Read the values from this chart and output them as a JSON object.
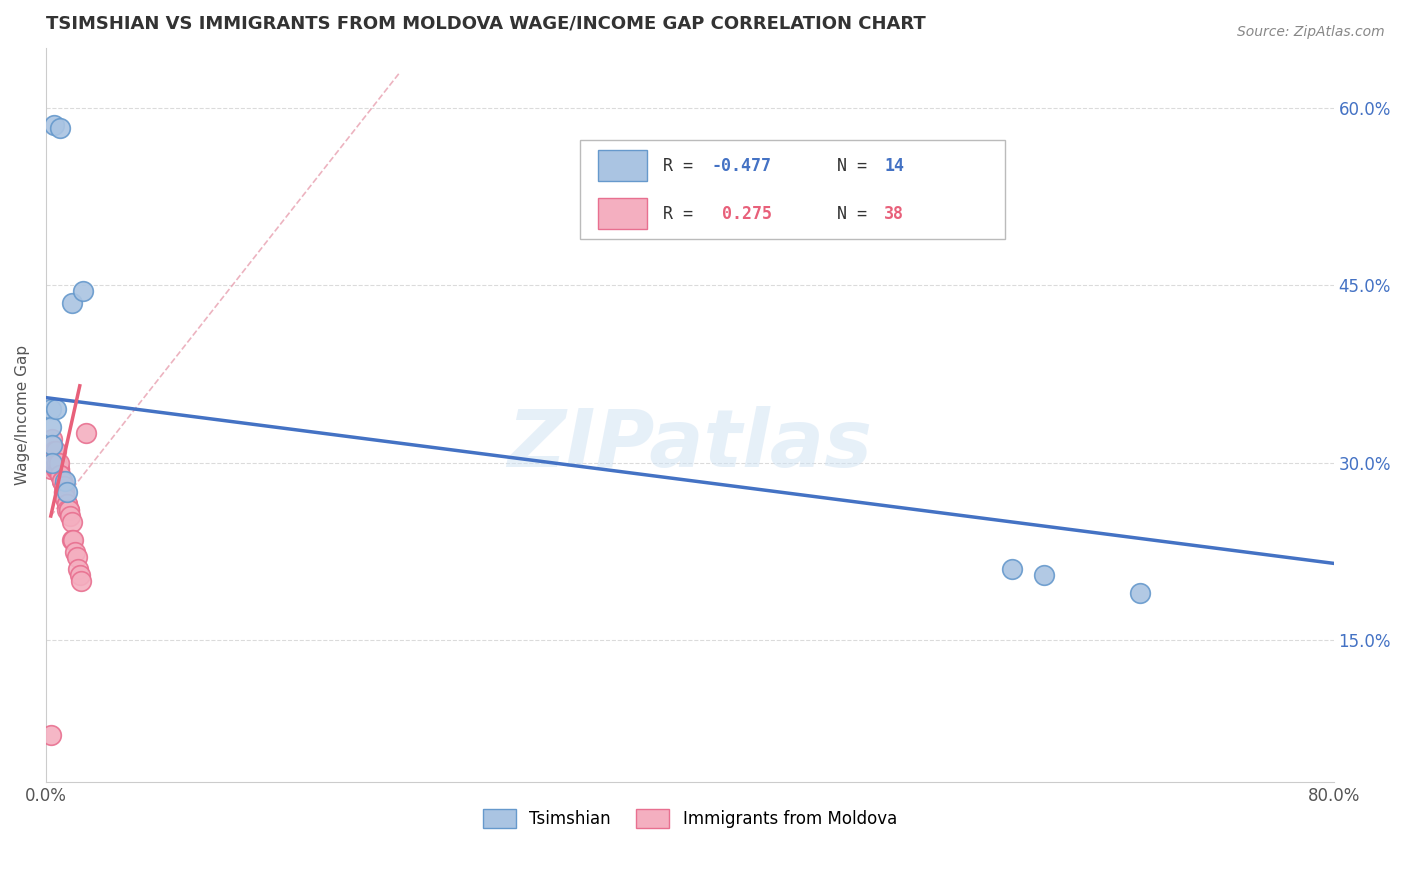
{
  "title": "TSIMSHIAN VS IMMIGRANTS FROM MOLDOVA WAGE/INCOME GAP CORRELATION CHART",
  "source": "Source: ZipAtlas.com",
  "ylabel": "Wage/Income Gap",
  "xlim": [
    0.0,
    0.8
  ],
  "ylim": [
    0.03,
    0.65
  ],
  "y_ticks": [
    0.15,
    0.3,
    0.45,
    0.6
  ],
  "y_tick_labels": [
    "15.0%",
    "30.0%",
    "45.0%",
    "60.0%"
  ],
  "watermark": "ZIPatlas",
  "tsimshian_color": "#aac4e2",
  "moldova_color": "#f4afc0",
  "tsimshian_edge": "#6699cc",
  "moldova_edge": "#e87090",
  "blue_line_color": "#4472c4",
  "pink_line_color": "#e8607a",
  "ref_line_color": "#e8a0b0",
  "background_color": "#ffffff",
  "grid_color": "#cccccc",
  "tsimshian_x": [
    0.005,
    0.009,
    0.016,
    0.023,
    0.003,
    0.003,
    0.004,
    0.004,
    0.006,
    0.012,
    0.013,
    0.62,
    0.68,
    0.6
  ],
  "tsimshian_y": [
    0.585,
    0.583,
    0.435,
    0.445,
    0.345,
    0.33,
    0.315,
    0.3,
    0.345,
    0.285,
    0.275,
    0.205,
    0.19,
    0.21
  ],
  "moldova_x": [
    0.003,
    0.004,
    0.004,
    0.005,
    0.005,
    0.005,
    0.006,
    0.006,
    0.007,
    0.007,
    0.008,
    0.008,
    0.008,
    0.009,
    0.009,
    0.01,
    0.01,
    0.011,
    0.011,
    0.011,
    0.012,
    0.012,
    0.013,
    0.013,
    0.013,
    0.014,
    0.014,
    0.015,
    0.016,
    0.016,
    0.017,
    0.018,
    0.019,
    0.02,
    0.021,
    0.022,
    0.003,
    0.025
  ],
  "moldova_y": [
    0.295,
    0.3,
    0.32,
    0.3,
    0.305,
    0.31,
    0.295,
    0.31,
    0.295,
    0.3,
    0.295,
    0.295,
    0.3,
    0.29,
    0.29,
    0.285,
    0.285,
    0.28,
    0.275,
    0.275,
    0.27,
    0.27,
    0.265,
    0.265,
    0.26,
    0.26,
    0.26,
    0.255,
    0.25,
    0.235,
    0.235,
    0.225,
    0.22,
    0.21,
    0.205,
    0.2,
    0.07,
    0.325
  ],
  "blue_line_x": [
    0.0,
    0.8
  ],
  "blue_line_y": [
    0.355,
    0.215
  ],
  "pink_line_x": [
    0.003,
    0.021
  ],
  "pink_line_y": [
    0.255,
    0.365
  ],
  "ref_line_x": [
    0.003,
    0.22
  ],
  "ref_line_y": [
    0.255,
    0.63
  ]
}
